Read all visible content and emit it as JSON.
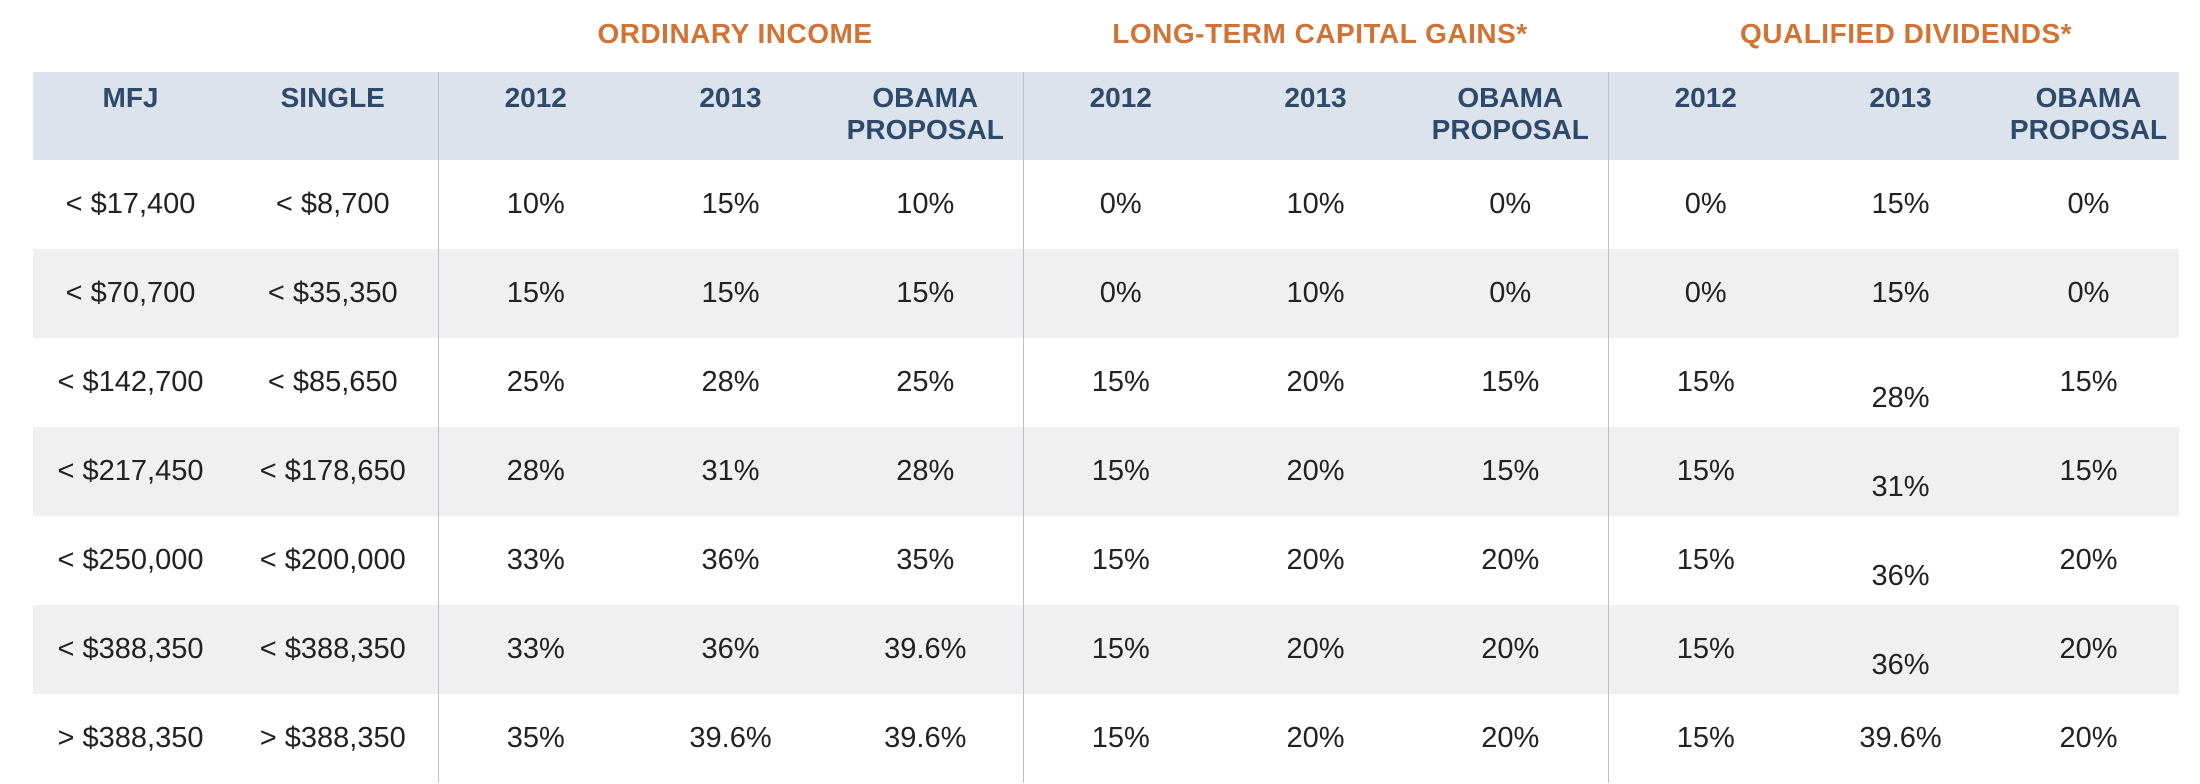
{
  "groups": {
    "ordinary_income": "ORDINARY INCOME",
    "long_term_capital_gains": "LONG-TERM CAPITAL GAINS*",
    "qualified_dividends": "QUALIFIED DIVIDENDS*"
  },
  "columns": [
    "MFJ",
    "SINGLE",
    "2012",
    "2013",
    "OBAMA PROPOSAL",
    "2012",
    "2013",
    "OBAMA PROPOSAL",
    "2012",
    "2013",
    "OBAMA PROPOSAL"
  ],
  "rows": [
    [
      "< $17,400",
      "< $8,700",
      "10%",
      "15%",
      "10%",
      "0%",
      "10%",
      "0%",
      "0%",
      "15%",
      "0%"
    ],
    [
      "< $70,700",
      "< $35,350",
      "15%",
      "15%",
      "15%",
      "0%",
      "10%",
      "0%",
      "0%",
      "15%",
      "0%"
    ],
    [
      "< $142,700",
      "< $85,650",
      "25%",
      "28%",
      "25%",
      "15%",
      "20%",
      "15%",
      "15%",
      "28%",
      "15%"
    ],
    [
      "< $217,450",
      "< $178,650",
      "28%",
      "31%",
      "28%",
      "15%",
      "20%",
      "15%",
      "15%",
      "31%",
      "15%"
    ],
    [
      "< $250,000",
      "< $200,000",
      "33%",
      "36%",
      "35%",
      "15%",
      "20%",
      "20%",
      "15%",
      "36%",
      "20%"
    ],
    [
      "< $388,350",
      "< $388,350",
      "33%",
      "36%",
      "39.6%",
      "15%",
      "20%",
      "20%",
      "15%",
      "36%",
      "20%"
    ],
    [
      "> $388,350",
      "> $388,350",
      "35%",
      "39.6%",
      "39.6%",
      "15%",
      "20%",
      "20%",
      "15%",
      "39.6%",
      "20%"
    ]
  ]
}
